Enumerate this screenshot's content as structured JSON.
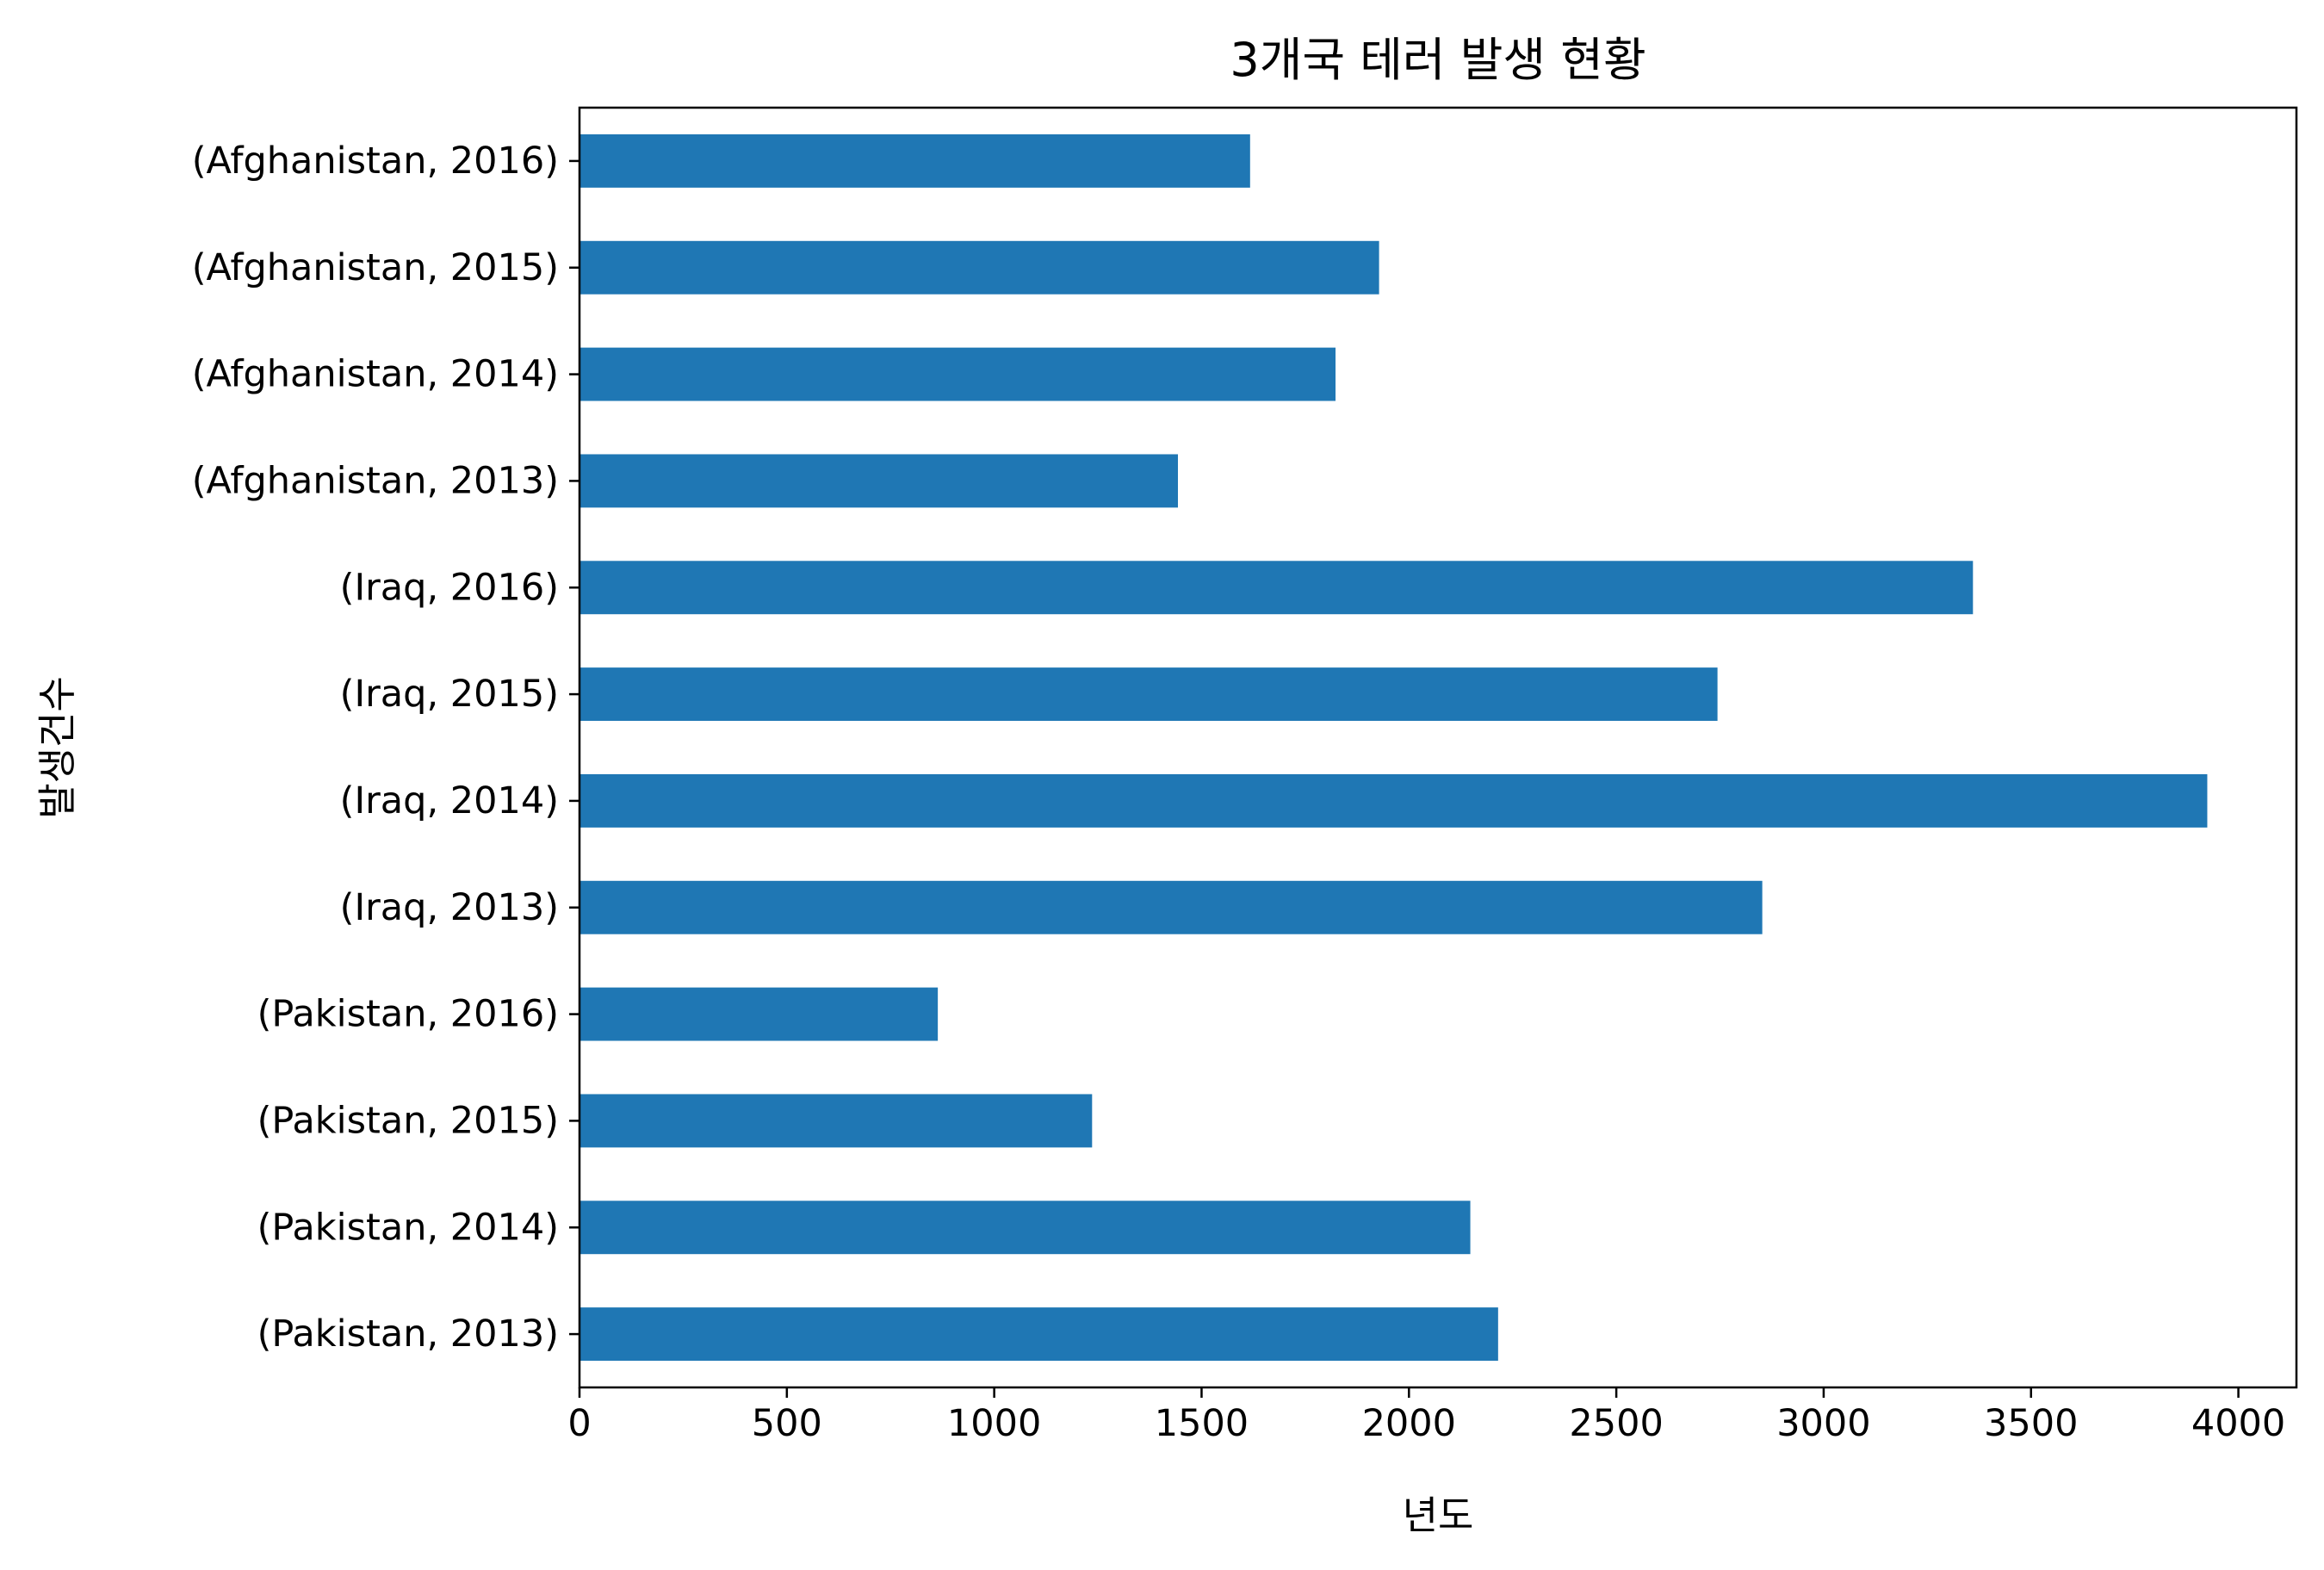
{
  "chart_data": {
    "type": "bar",
    "orientation": "horizontal",
    "title": "3개국 테러 발생 현황",
    "xlabel": "년도",
    "ylabel": "발생건수",
    "xlim": [
      0,
      4140
    ],
    "xticks": [
      0,
      500,
      1000,
      1500,
      2000,
      2500,
      3000,
      3500,
      4000
    ],
    "grid": false,
    "bar_color": "#1f77b4",
    "categories": [
      "(Afghanistan, 2016)",
      "(Afghanistan, 2015)",
      "(Afghanistan, 2014)",
      "(Afghanistan, 2013)",
      "(Iraq, 2016)",
      "(Iraq, 2015)",
      "(Iraq, 2014)",
      "(Iraq, 2013)",
      "(Pakistan, 2016)",
      "(Pakistan, 2015)",
      "(Pakistan, 2014)",
      "(Pakistan, 2013)"
    ],
    "values": [
      1617,
      1928,
      1823,
      1443,
      3360,
      2744,
      3925,
      2852,
      864,
      1236,
      2148,
      2215
    ]
  }
}
